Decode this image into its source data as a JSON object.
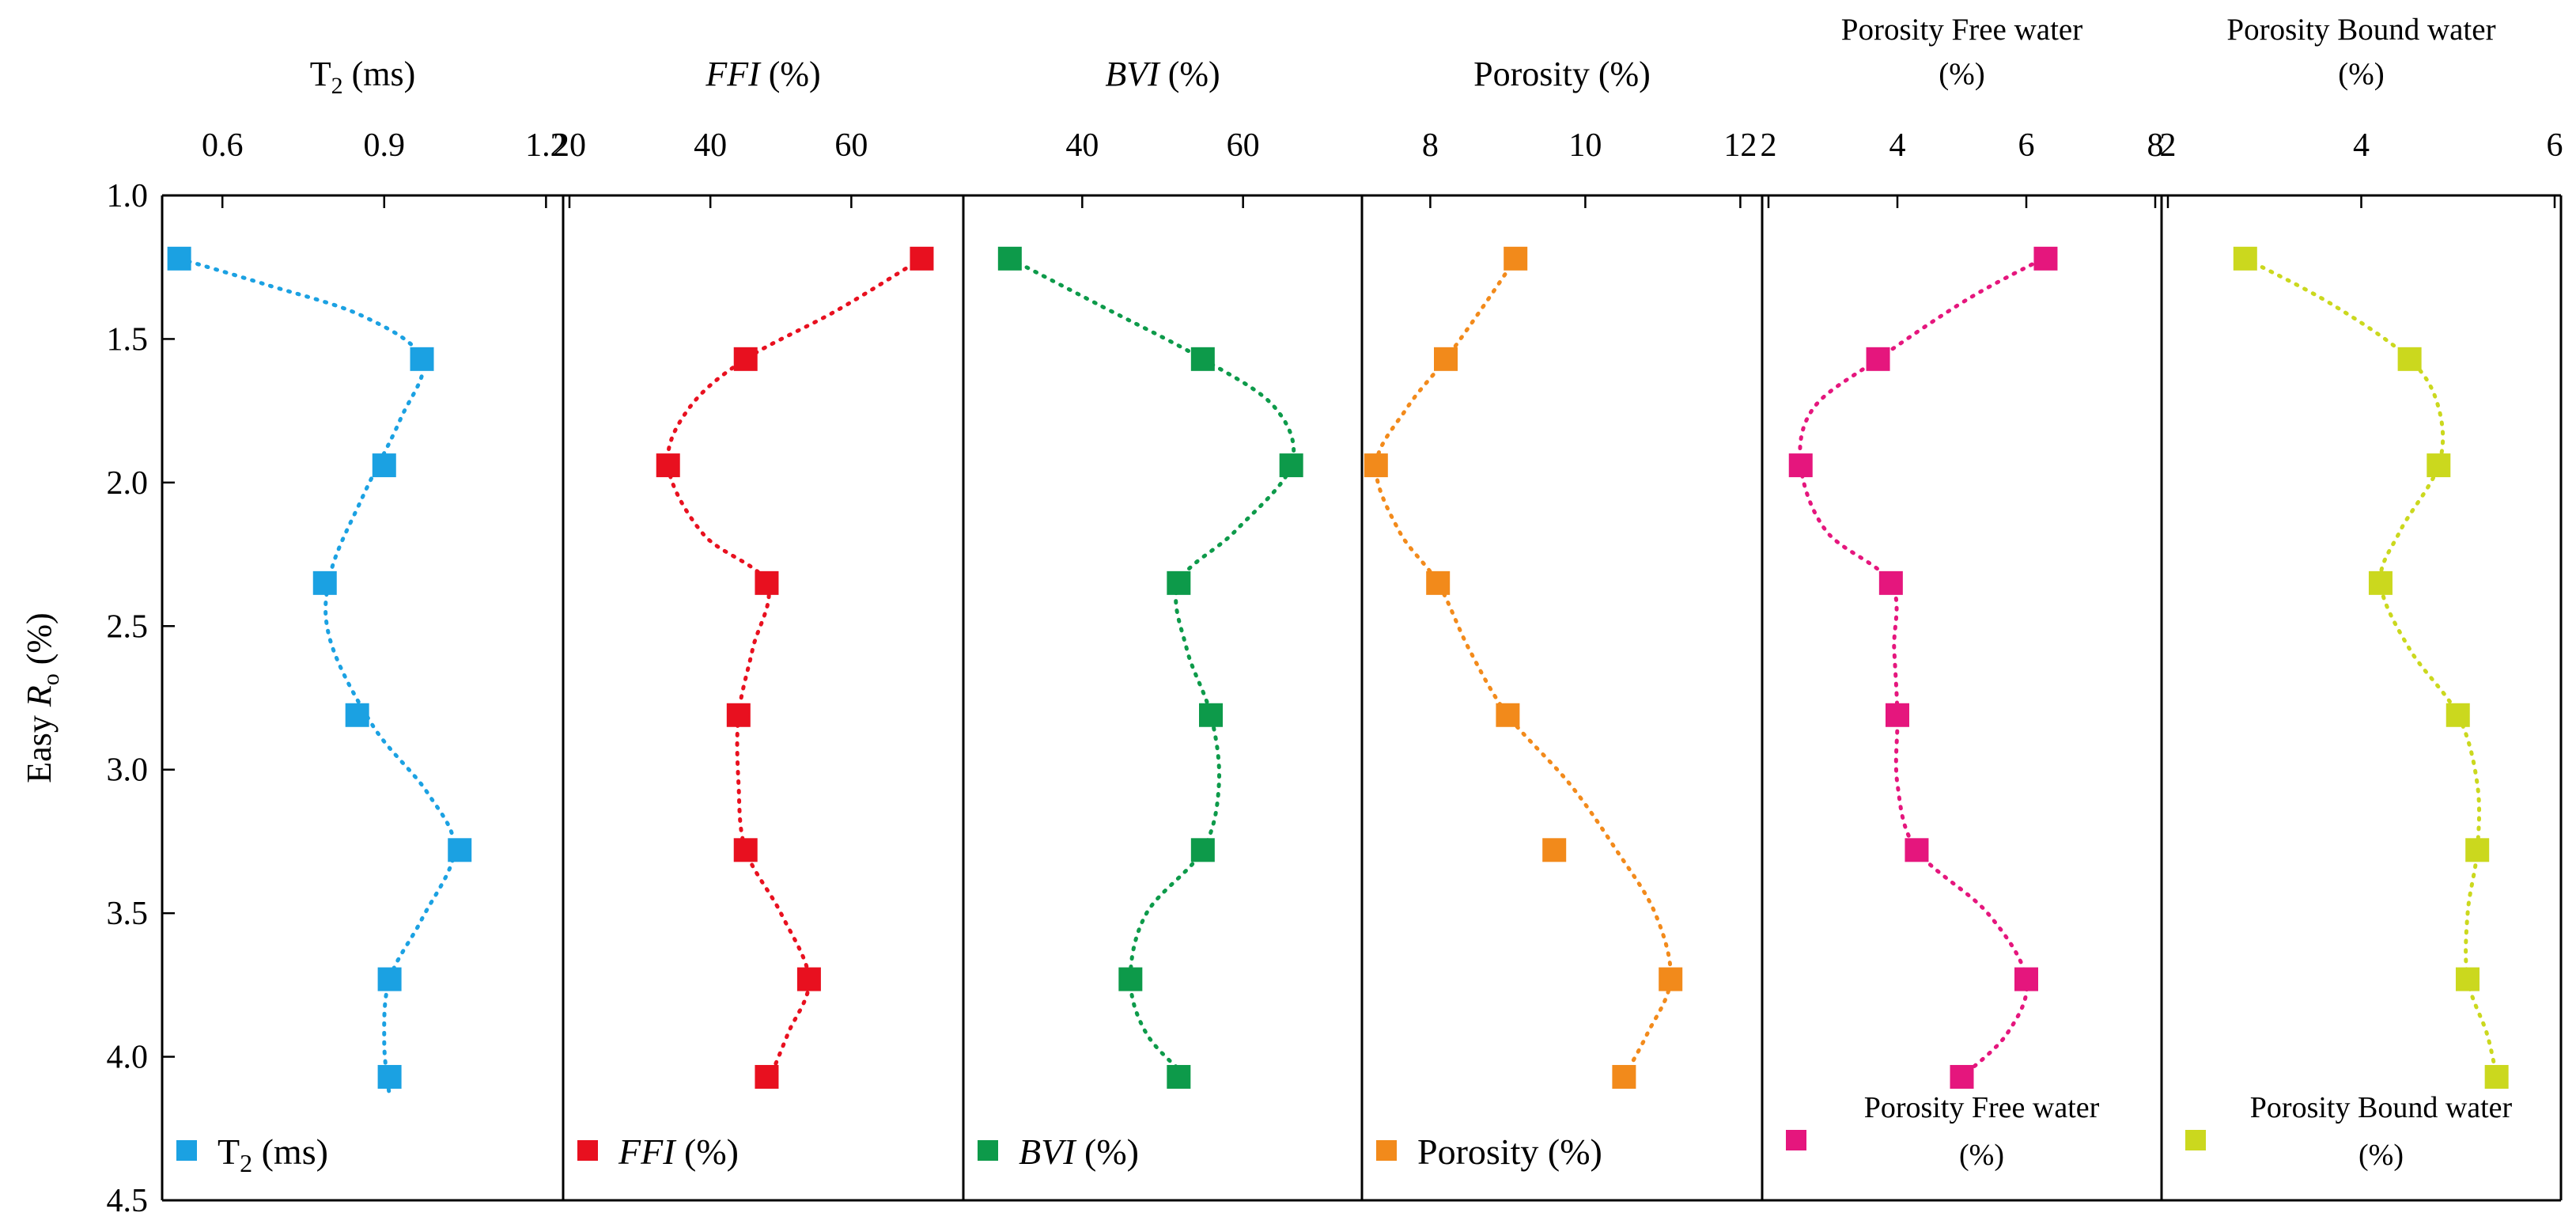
{
  "chart_data": {
    "type": "scatter",
    "layout": "six side-by-side panels sharing a vertical (inverted) y-axis, x-axes on top",
    "y_axis": {
      "label_prefix": "Easy ",
      "label_var": "R",
      "label_sub": "o",
      "label_suffix": " (%)",
      "ylim": [
        1.0,
        4.5
      ],
      "inverted": true,
      "ticks": [
        1.0,
        1.5,
        2.0,
        2.5,
        3.0,
        3.5,
        4.0,
        4.5
      ],
      "tick_labels": [
        "1.0",
        "1.5",
        "2.0",
        "2.5",
        "3.0",
        "3.5",
        "4.0",
        "4.5"
      ]
    },
    "panels": [
      {
        "key": "t2",
        "color": "#1ba1e2",
        "title": {
          "main": "T",
          "sub": "2",
          "rest": " (ms)",
          "italic": false
        },
        "legend": {
          "main": "T",
          "sub": "2",
          "rest": " (ms)",
          "italic": false
        },
        "xlim": [
          0.5,
          1.22
        ],
        "ticks": [
          0.6,
          0.9,
          1.2
        ],
        "tick_labels": [
          "0.6",
          "0.9",
          "1.2"
        ],
        "points": [
          [
            0.52,
            1.22
          ],
          [
            0.97,
            1.57
          ],
          [
            0.9,
            1.94
          ],
          [
            0.79,
            2.35
          ],
          [
            0.85,
            2.81
          ],
          [
            1.04,
            3.28
          ],
          [
            0.91,
            3.73
          ],
          [
            0.91,
            4.07
          ]
        ],
        "curve": [
          [
            0.52,
            1.22
          ],
          [
            0.68,
            1.31
          ],
          [
            0.86,
            1.42
          ],
          [
            0.97,
            1.57
          ],
          [
            0.93,
            1.78
          ],
          [
            0.86,
            2.05
          ],
          [
            0.8,
            2.32
          ],
          [
            0.8,
            2.55
          ],
          [
            0.88,
            2.85
          ],
          [
            0.98,
            3.08
          ],
          [
            1.03,
            3.28
          ],
          [
            0.97,
            3.52
          ],
          [
            0.91,
            3.73
          ],
          [
            0.9,
            3.95
          ],
          [
            0.91,
            4.14
          ]
        ]
      },
      {
        "key": "ffi",
        "color": "#e8101f",
        "title": {
          "main": "FFI",
          "sub": "",
          "rest": " (%)",
          "italic": true
        },
        "legend": {
          "main": "FFI",
          "sub": "",
          "rest": " (%)",
          "italic": true
        },
        "xlim": [
          20,
          75
        ],
        "ticks": [
          20,
          40,
          60
        ],
        "tick_labels": [
          "20",
          "40",
          "60"
        ],
        "points": [
          [
            70,
            1.22
          ],
          [
            45,
            1.57
          ],
          [
            34,
            1.94
          ],
          [
            48,
            2.35
          ],
          [
            44,
            2.81
          ],
          [
            45,
            3.28
          ],
          [
            54,
            3.73
          ],
          [
            48,
            4.07
          ]
        ],
        "curve": [
          [
            70,
            1.22
          ],
          [
            58,
            1.4
          ],
          [
            45,
            1.57
          ],
          [
            37,
            1.74
          ],
          [
            34,
            1.94
          ],
          [
            39,
            2.18
          ],
          [
            48,
            2.35
          ],
          [
            46,
            2.58
          ],
          [
            44,
            2.81
          ],
          [
            44,
            3.05
          ],
          [
            45,
            3.28
          ],
          [
            50,
            3.5
          ],
          [
            54,
            3.73
          ],
          [
            51,
            3.92
          ],
          [
            48,
            4.1
          ]
        ]
      },
      {
        "key": "bvi",
        "color": "#0d9a4a",
        "title": {
          "main": "BVI",
          "sub": "",
          "rest": " (%)",
          "italic": true
        },
        "legend": {
          "main": "BVI",
          "sub": "",
          "rest": " (%)",
          "italic": true
        },
        "xlim": [
          26,
          74
        ],
        "ticks": [
          40,
          60
        ],
        "tick_labels": [
          "40",
          "60"
        ],
        "points": [
          [
            31,
            1.22
          ],
          [
            55,
            1.57
          ],
          [
            66,
            1.94
          ],
          [
            52,
            2.35
          ],
          [
            56,
            2.81
          ],
          [
            55,
            3.28
          ],
          [
            46,
            3.73
          ],
          [
            52,
            4.07
          ]
        ],
        "curve": [
          [
            31,
            1.22
          ],
          [
            42,
            1.38
          ],
          [
            55,
            1.57
          ],
          [
            64,
            1.74
          ],
          [
            66,
            1.94
          ],
          [
            59,
            2.17
          ],
          [
            52,
            2.35
          ],
          [
            53,
            2.58
          ],
          [
            56,
            2.81
          ],
          [
            57,
            3.05
          ],
          [
            55,
            3.28
          ],
          [
            48,
            3.5
          ],
          [
            46,
            3.73
          ],
          [
            48,
            3.92
          ],
          [
            53,
            4.07
          ]
        ]
      },
      {
        "key": "porosity",
        "color": "#f28a1b",
        "title": {
          "main": "Porosity",
          "sub": "",
          "rest": " (%)",
          "italic": false
        },
        "legend": {
          "main": "Porosity",
          "sub": "",
          "rest": " (%)",
          "italic": false
        },
        "xlim": [
          7.2,
          12.2
        ],
        "ticks": [
          8,
          10,
          12
        ],
        "tick_labels": [
          "8",
          "10",
          "12"
        ],
        "points": [
          [
            9.1,
            1.22
          ],
          [
            8.2,
            1.57
          ],
          [
            7.3,
            1.94
          ],
          [
            8.1,
            2.35
          ],
          [
            9.0,
            2.81
          ],
          [
            9.6,
            3.28
          ],
          [
            11.1,
            3.73
          ],
          [
            10.5,
            4.07
          ]
        ],
        "curve": [
          [
            9.1,
            1.22
          ],
          [
            8.7,
            1.38
          ],
          [
            8.2,
            1.57
          ],
          [
            7.7,
            1.74
          ],
          [
            7.3,
            1.94
          ],
          [
            7.6,
            2.17
          ],
          [
            8.1,
            2.35
          ],
          [
            8.5,
            2.58
          ],
          [
            9.0,
            2.81
          ],
          [
            9.8,
            3.05
          ],
          [
            10.4,
            3.28
          ],
          [
            10.9,
            3.5
          ],
          [
            11.1,
            3.73
          ],
          [
            10.8,
            3.92
          ],
          [
            10.5,
            4.07
          ]
        ]
      },
      {
        "key": "free_water",
        "color": "#e5167d",
        "title": {
          "main": "Porosity Free water",
          "sub": "",
          "rest": "(%)",
          "italic": false,
          "two_line": true
        },
        "legend": {
          "main": "Porosity Free water",
          "sub": "",
          "rest": "(%)",
          "italic": false,
          "two_line": true
        },
        "xlim": [
          2,
          8
        ],
        "ticks": [
          2,
          4,
          6,
          8
        ],
        "tick_labels": [
          "2",
          "4",
          "6",
          "8"
        ],
        "points": [
          [
            6.3,
            1.22
          ],
          [
            3.7,
            1.57
          ],
          [
            2.5,
            1.94
          ],
          [
            3.9,
            2.35
          ],
          [
            4.0,
            2.81
          ],
          [
            4.3,
            3.28
          ],
          [
            6.0,
            3.73
          ],
          [
            5.0,
            4.07
          ]
        ],
        "curve": [
          [
            6.35,
            1.21
          ],
          [
            5.1,
            1.36
          ],
          [
            3.7,
            1.57
          ],
          [
            2.7,
            1.74
          ],
          [
            2.5,
            1.94
          ],
          [
            2.9,
            2.17
          ],
          [
            3.9,
            2.35
          ],
          [
            3.95,
            2.58
          ],
          [
            4.0,
            2.81
          ],
          [
            4.0,
            3.05
          ],
          [
            4.3,
            3.28
          ],
          [
            5.4,
            3.5
          ],
          [
            6.0,
            3.73
          ],
          [
            5.7,
            3.92
          ],
          [
            5.0,
            4.07
          ]
        ]
      },
      {
        "key": "bound_water",
        "color": "#cbd81e",
        "title": {
          "main": "Porosity Bound water",
          "sub": "",
          "rest": "(%)",
          "italic": false,
          "two_line": true
        },
        "legend": {
          "main": "Porosity Bound water",
          "sub": "",
          "rest": "(%)",
          "italic": false,
          "two_line": true
        },
        "xlim": [
          2,
          6
        ],
        "ticks": [
          2,
          4,
          6
        ],
        "tick_labels": [
          "2",
          "4",
          "6"
        ],
        "points": [
          [
            2.8,
            1.22
          ],
          [
            4.5,
            1.57
          ],
          [
            4.8,
            1.94
          ],
          [
            4.2,
            2.35
          ],
          [
            5.0,
            2.81
          ],
          [
            5.2,
            3.28
          ],
          [
            5.1,
            3.73
          ],
          [
            5.4,
            4.07
          ]
        ],
        "curve": [
          [
            2.8,
            1.22
          ],
          [
            3.7,
            1.38
          ],
          [
            4.5,
            1.57
          ],
          [
            4.8,
            1.74
          ],
          [
            4.8,
            1.94
          ],
          [
            4.4,
            2.17
          ],
          [
            4.2,
            2.35
          ],
          [
            4.5,
            2.58
          ],
          [
            5.0,
            2.81
          ],
          [
            5.2,
            3.05
          ],
          [
            5.2,
            3.28
          ],
          [
            5.1,
            3.5
          ],
          [
            5.1,
            3.73
          ],
          [
            5.3,
            3.92
          ],
          [
            5.4,
            4.07
          ]
        ]
      }
    ]
  }
}
